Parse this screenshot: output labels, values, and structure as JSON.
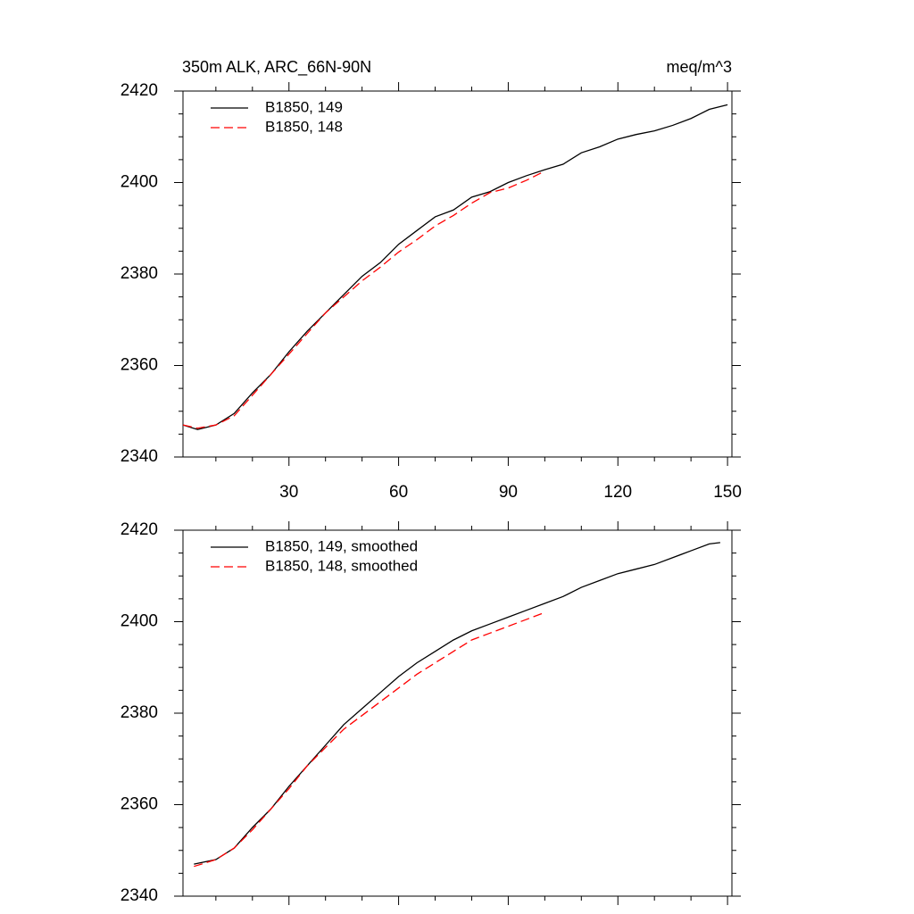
{
  "chart_data": [
    {
      "type": "line",
      "title": "350m ALK, ARC_66N-90N",
      "units": "meq/m^3",
      "xlim": [
        1,
        151.2
      ],
      "xticks": [
        30,
        60,
        90,
        120,
        150
      ],
      "xminor_ticks": [
        10,
        20,
        40,
        50,
        70,
        80,
        100,
        110,
        130,
        140
      ],
      "ylim": [
        2340,
        2420
      ],
      "yticks": [
        2340,
        2360,
        2380,
        2400,
        2420
      ],
      "yminor_ticks": [
        2345,
        2350,
        2355,
        2365,
        2370,
        2375,
        2385,
        2390,
        2395,
        2405,
        2410,
        2415
      ],
      "series": [
        {
          "name": "B1850, 149",
          "color": "#000000",
          "dash": false,
          "x": [
            1,
            5,
            10,
            15,
            20,
            25,
            30,
            35,
            40,
            45,
            50,
            55,
            60,
            65,
            70,
            75,
            80,
            85,
            90,
            95,
            100,
            105,
            110,
            115,
            120,
            125,
            130,
            135,
            140,
            145,
            150
          ],
          "values": [
            2347,
            2346,
            2347,
            2349.5,
            2354,
            2358,
            2363,
            2367.5,
            2371.5,
            2375.5,
            2379.5,
            2382.5,
            2386.5,
            2389.5,
            2392.5,
            2394,
            2396.8,
            2398,
            2400,
            2401.5,
            2402.8,
            2404,
            2406.5,
            2407.8,
            2409.5,
            2410.5,
            2411.3,
            2412.5,
            2414,
            2416,
            2417
          ]
        },
        {
          "name": "B1850, 148",
          "color": "#ff0000",
          "dash": true,
          "x": [
            1,
            5,
            10,
            15,
            20,
            25,
            30,
            35,
            40,
            45,
            50,
            55,
            60,
            65,
            70,
            75,
            80,
            85,
            90,
            95,
            100
          ],
          "values": [
            2347,
            2346.3,
            2347,
            2349,
            2353.5,
            2358,
            2362.5,
            2367,
            2371.5,
            2375,
            2378.5,
            2381.5,
            2384.8,
            2387.5,
            2390.5,
            2392.8,
            2395.5,
            2397.8,
            2398.8,
            2400.5,
            2402.5
          ]
        }
      ]
    },
    {
      "type": "line",
      "xlim": [
        1,
        151.2
      ],
      "xticks": [
        30,
        60,
        90,
        120,
        150
      ],
      "xminor_ticks": [
        10,
        20,
        40,
        50,
        70,
        80,
        100,
        110,
        130,
        140
      ],
      "ylim": [
        2340,
        2420
      ],
      "yticks": [
        2340,
        2360,
        2380,
        2400,
        2420
      ],
      "yminor_ticks": [
        2345,
        2350,
        2355,
        2365,
        2370,
        2375,
        2385,
        2390,
        2395,
        2405,
        2410,
        2415
      ],
      "series": [
        {
          "name": "B1850, 149, smoothed",
          "color": "#000000",
          "dash": false,
          "x": [
            4,
            10,
            15,
            20,
            25,
            30,
            35,
            40,
            45,
            50,
            55,
            60,
            65,
            70,
            75,
            80,
            85,
            90,
            95,
            100,
            105,
            110,
            115,
            120,
            125,
            130,
            135,
            140,
            145,
            148
          ],
          "values": [
            2347,
            2348,
            2350.5,
            2355,
            2359,
            2364,
            2368.5,
            2373,
            2377.5,
            2381,
            2384.5,
            2388,
            2391,
            2393.5,
            2396,
            2398,
            2399.5,
            2401,
            2402.5,
            2404,
            2405.5,
            2407.5,
            2409,
            2410.5,
            2411.5,
            2412.5,
            2414,
            2415.5,
            2417,
            2417.3
          ]
        },
        {
          "name": "B1850, 148, smoothed",
          "color": "#ff0000",
          "dash": true,
          "x": [
            4,
            10,
            15,
            20,
            25,
            30,
            35,
            40,
            45,
            50,
            55,
            60,
            65,
            70,
            75,
            80,
            85,
            90,
            95,
            100
          ],
          "values": [
            2346.5,
            2348,
            2350.5,
            2354.5,
            2359,
            2363.5,
            2368.5,
            2372.5,
            2376.5,
            2379.5,
            2382.5,
            2385.5,
            2388.5,
            2391,
            2393.5,
            2396,
            2397.5,
            2399,
            2400.5,
            2402
          ]
        }
      ]
    }
  ]
}
